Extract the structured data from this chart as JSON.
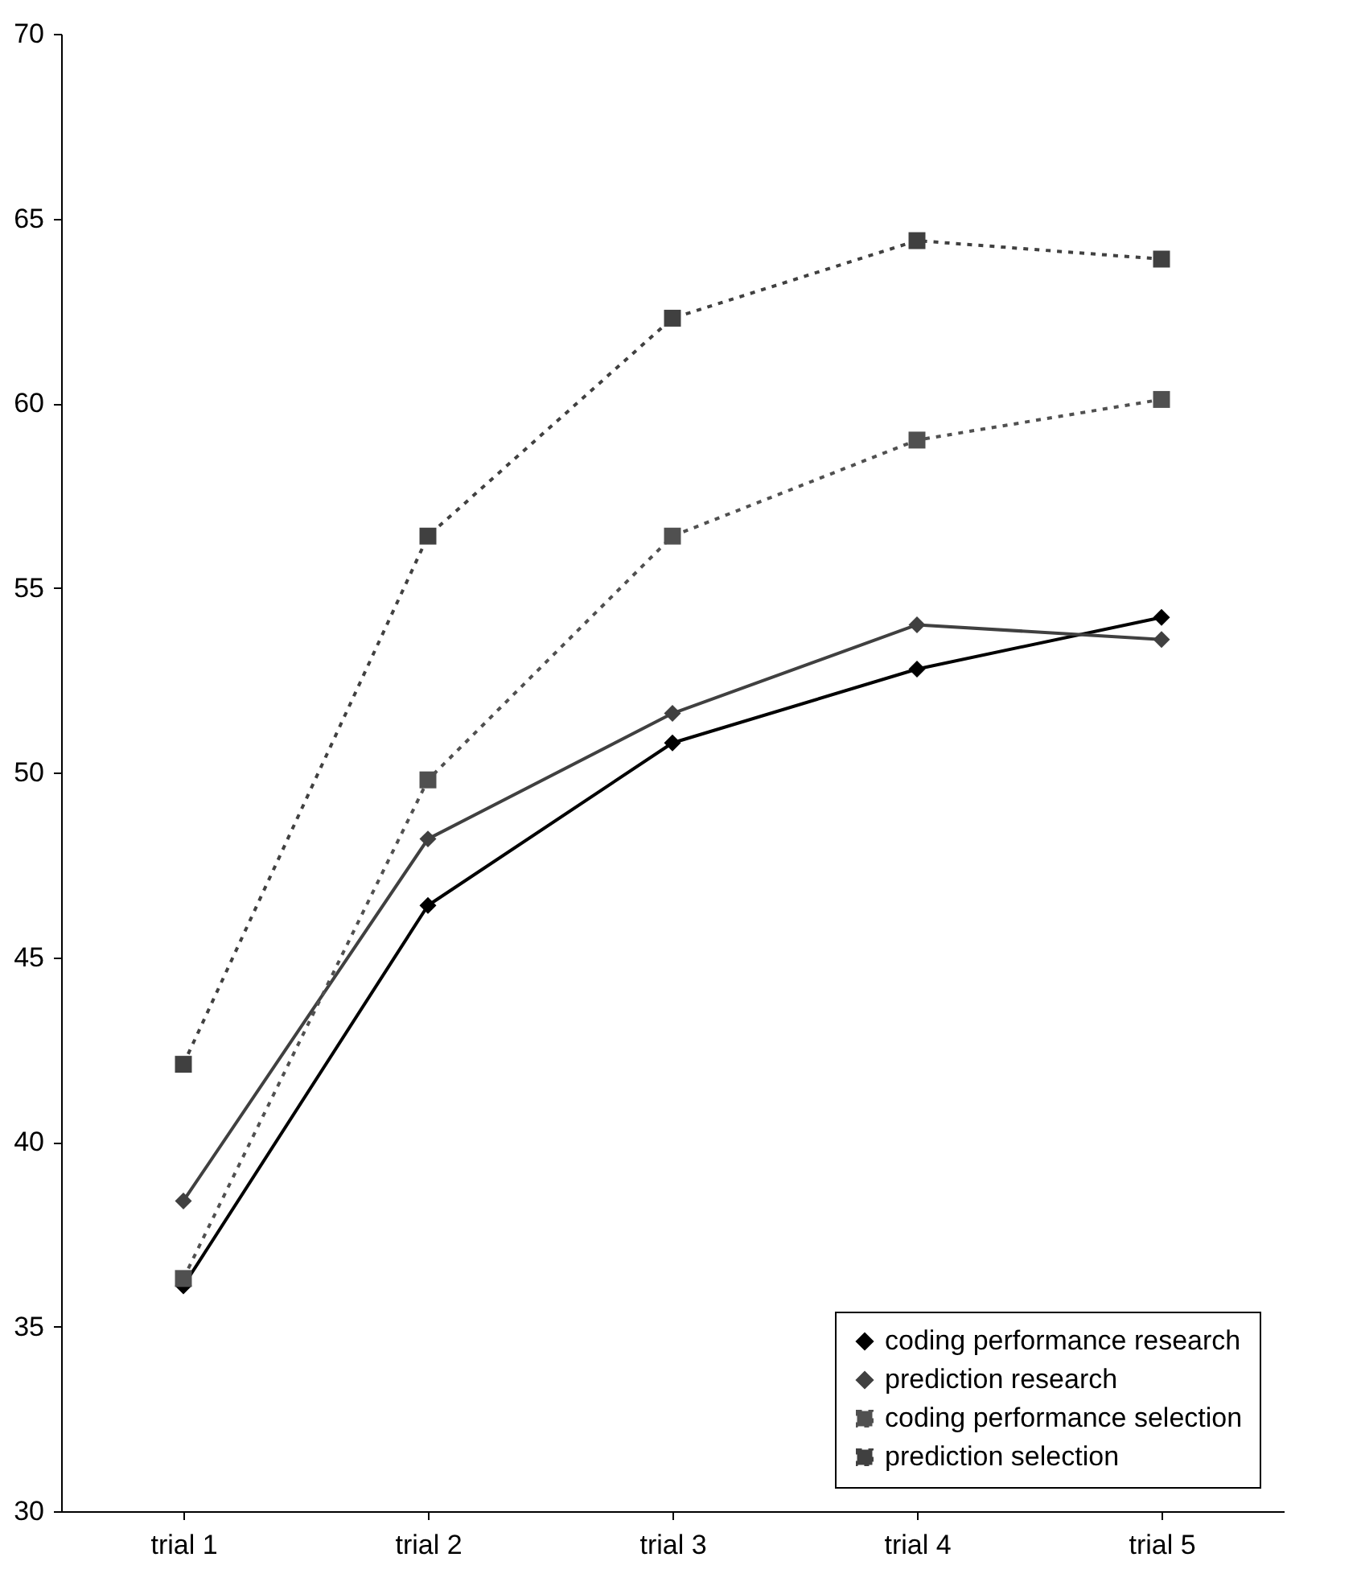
{
  "chart_data": {
    "type": "line",
    "categories": [
      "trial 1",
      "trial 2",
      "trial 3",
      "trial 4",
      "trial 5"
    ],
    "series": [
      {
        "name": "coding performance research",
        "color": "#000000",
        "marker": "diamond",
        "line_style": "solid",
        "values": [
          36.1,
          46.4,
          50.8,
          52.8,
          54.2
        ]
      },
      {
        "name": "prediction research",
        "color": "#404040",
        "marker": "diamond",
        "line_style": "solid",
        "values": [
          38.4,
          48.2,
          51.6,
          54.0,
          53.6
        ]
      },
      {
        "name": "coding performance selection",
        "color": "#505050",
        "marker": "square",
        "line_style": "dotted",
        "values": [
          36.3,
          49.8,
          56.4,
          59.0,
          60.1
        ]
      },
      {
        "name": "prediction selection",
        "color": "#404040",
        "marker": "square",
        "line_style": "dotted",
        "values": [
          42.1,
          56.4,
          62.3,
          64.4,
          63.9
        ]
      }
    ],
    "ylim": [
      30,
      70
    ],
    "yticks": [
      30,
      35,
      40,
      45,
      50,
      55,
      60,
      65,
      70
    ],
    "grid": false,
    "legend": "bottom right"
  }
}
